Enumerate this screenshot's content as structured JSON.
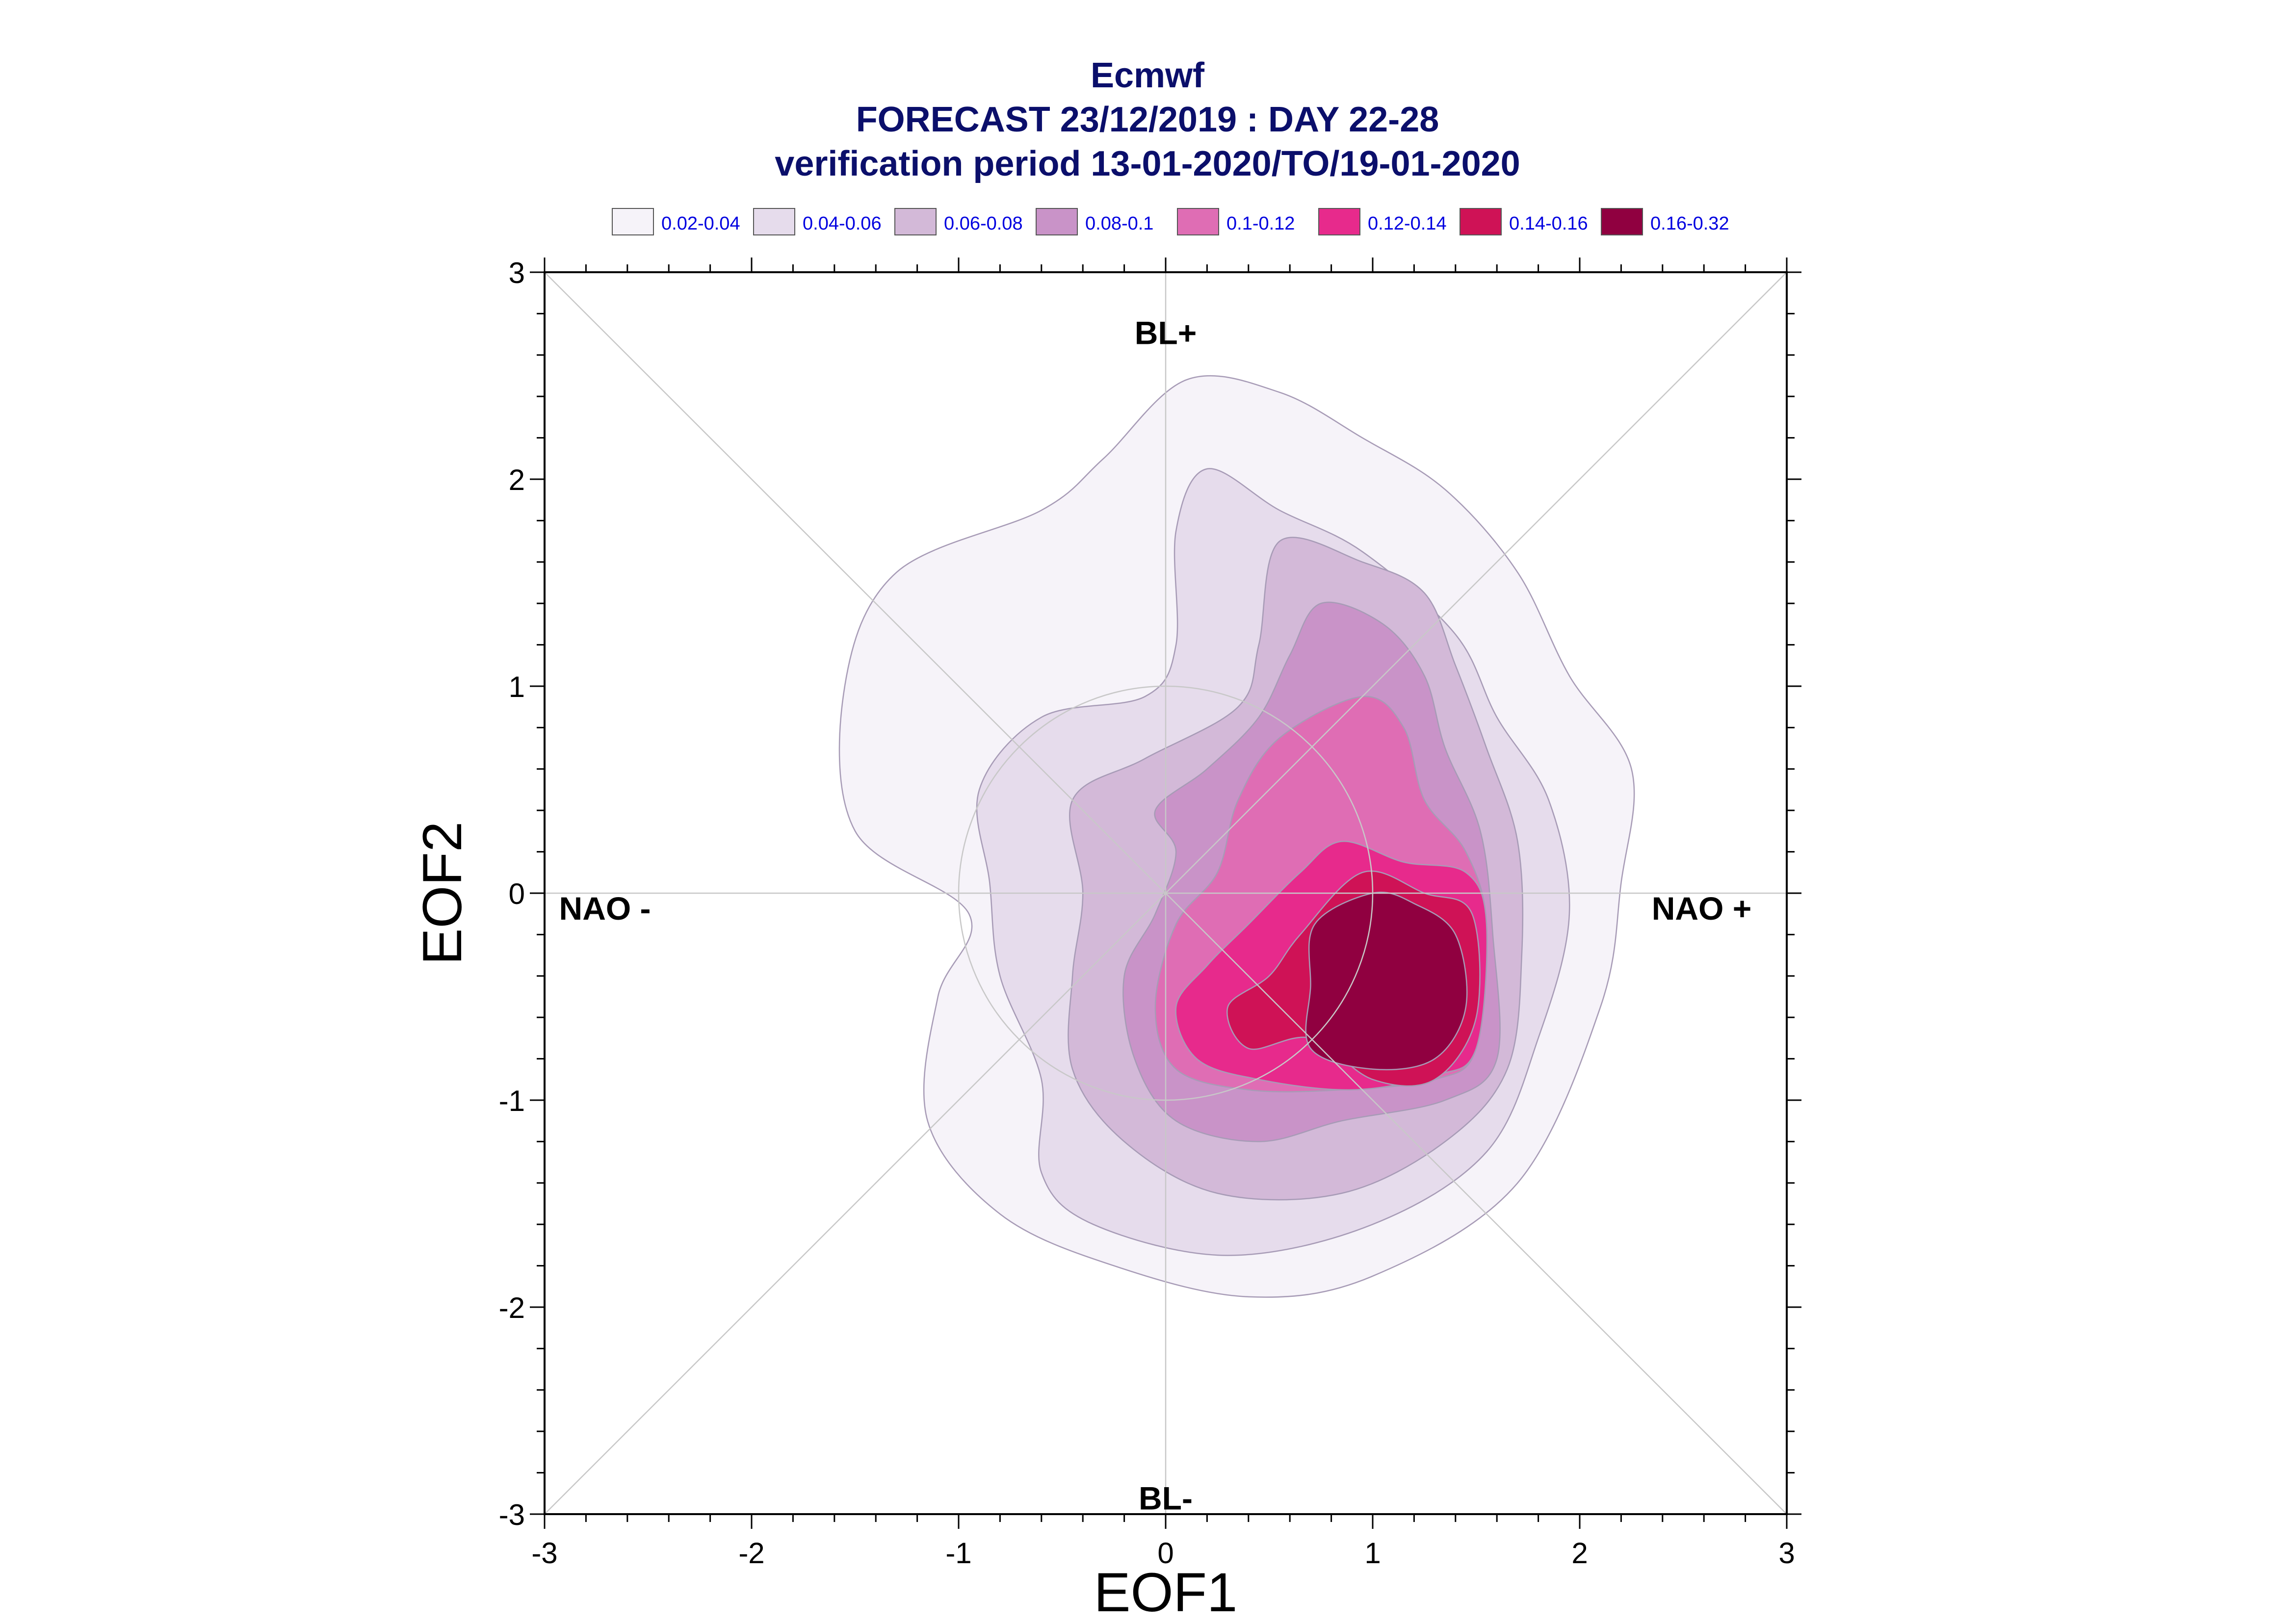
{
  "chart_data": {
    "type": "contour",
    "title_lines": [
      "Ecmwf",
      "FORECAST 23/12/2019 : DAY 22-28",
      "verification period 13-01-2020/TO/19-01-2020"
    ],
    "xlabel": "EOF1",
    "ylabel": "EOF2",
    "xlim": [
      -3,
      3
    ],
    "ylim": [
      -3,
      3
    ],
    "xticks": [
      "-3",
      "-2",
      "-1",
      "0",
      "1",
      "2",
      "3"
    ],
    "yticks": [
      "3",
      "2",
      "1",
      "0",
      "-1",
      "-2",
      "-3"
    ],
    "grid": false,
    "legend_position": "top",
    "legend": [
      {
        "label": "0.02-0.04",
        "color": "#f6f3f9"
      },
      {
        "label": "0.04-0.06",
        "color": "#e6dcec"
      },
      {
        "label": "0.06-0.08",
        "color": "#d3b9d8"
      },
      {
        "label": "0.08-0.1",
        "color": "#c993c8"
      },
      {
        "label": "0.1-0.12",
        "color": "#df6db4"
      },
      {
        "label": "0.12-0.14",
        "color": "#e72a8c"
      },
      {
        "label": "0.14-0.16",
        "color": "#cf1256"
      },
      {
        "label": "0.16-0.32",
        "color": "#900040"
      }
    ],
    "regime_labels": {
      "top": "BL+",
      "bottom": "BL-",
      "left": "NAO -",
      "right": "NAO +"
    },
    "reference_circle": {
      "center": [
        0,
        0
      ],
      "radius": 1
    },
    "levels": [
      [
        [
          0.1,
          2.48
        ],
        [
          0.55,
          2.42
        ],
        [
          0.95,
          2.2
        ],
        [
          1.35,
          1.95
        ],
        [
          1.7,
          1.55
        ],
        [
          1.95,
          1.05
        ],
        [
          2.25,
          0.6
        ],
        [
          2.2,
          0.05
        ],
        [
          2.1,
          -0.55
        ],
        [
          1.7,
          -1.4
        ],
        [
          1.0,
          -1.85
        ],
        [
          0.4,
          -1.95
        ],
        [
          -0.25,
          -1.8
        ],
        [
          -0.8,
          -1.55
        ],
        [
          -1.15,
          -1.1
        ],
        [
          -1.1,
          -0.5
        ],
        [
          -0.95,
          -0.1
        ],
        [
          -1.5,
          0.3
        ],
        [
          -1.55,
          1.0
        ],
        [
          -1.3,
          1.55
        ],
        [
          -0.6,
          1.85
        ],
        [
          -0.3,
          2.1
        ]
      ],
      [
        [
          0.2,
          2.05
        ],
        [
          0.55,
          1.85
        ],
        [
          0.95,
          1.65
        ],
        [
          1.4,
          1.25
        ],
        [
          1.6,
          0.85
        ],
        [
          1.85,
          0.45
        ],
        [
          1.95,
          -0.1
        ],
        [
          1.8,
          -0.7
        ],
        [
          1.55,
          -1.25
        ],
        [
          1.0,
          -1.6
        ],
        [
          0.3,
          -1.75
        ],
        [
          -0.35,
          -1.6
        ],
        [
          -0.6,
          -1.35
        ],
        [
          -0.6,
          -0.9
        ],
        [
          -0.8,
          -0.4
        ],
        [
          -0.85,
          0.05
        ],
        [
          -0.9,
          0.5
        ],
        [
          -0.6,
          0.85
        ],
        [
          -0.1,
          0.95
        ],
        [
          0.05,
          1.2
        ],
        [
          0.05,
          1.75
        ]
      ],
      [
        [
          0.55,
          1.7
        ],
        [
          0.95,
          1.6
        ],
        [
          1.25,
          1.45
        ],
        [
          1.4,
          1.1
        ],
        [
          1.55,
          0.7
        ],
        [
          1.7,
          0.25
        ],
        [
          1.72,
          -0.3
        ],
        [
          1.65,
          -0.85
        ],
        [
          1.35,
          -1.2
        ],
        [
          0.85,
          -1.45
        ],
        [
          0.25,
          -1.45
        ],
        [
          -0.2,
          -1.2
        ],
        [
          -0.45,
          -0.85
        ],
        [
          -0.45,
          -0.4
        ],
        [
          -0.4,
          0.0
        ],
        [
          -0.45,
          0.45
        ],
        [
          -0.1,
          0.65
        ],
        [
          0.35,
          0.9
        ],
        [
          0.45,
          1.2
        ]
      ],
      [
        [
          0.75,
          1.4
        ],
        [
          1.05,
          1.3
        ],
        [
          1.25,
          1.05
        ],
        [
          1.35,
          0.7
        ],
        [
          1.52,
          0.3
        ],
        [
          1.58,
          -0.2
        ],
        [
          1.6,
          -0.8
        ],
        [
          1.35,
          -1.0
        ],
        [
          0.85,
          -1.1
        ],
        [
          0.45,
          -1.2
        ],
        [
          0.05,
          -1.1
        ],
        [
          -0.15,
          -0.8
        ],
        [
          -0.2,
          -0.4
        ],
        [
          -0.05,
          -0.1
        ],
        [
          0.05,
          0.2
        ],
        [
          -0.05,
          0.4
        ],
        [
          0.2,
          0.6
        ],
        [
          0.45,
          0.85
        ],
        [
          0.6,
          1.15
        ]
      ],
      [
        [
          0.95,
          0.95
        ],
        [
          1.15,
          0.8
        ],
        [
          1.25,
          0.45
        ],
        [
          1.45,
          0.2
        ],
        [
          1.55,
          -0.15
        ],
        [
          1.5,
          -0.75
        ],
        [
          1.3,
          -0.9
        ],
        [
          0.85,
          -0.95
        ],
        [
          0.4,
          -0.95
        ],
        [
          0.05,
          -0.85
        ],
        [
          -0.05,
          -0.55
        ],
        [
          0.05,
          -0.15
        ],
        [
          0.25,
          0.1
        ],
        [
          0.35,
          0.45
        ],
        [
          0.55,
          0.75
        ]
      ],
      [
        [
          0.85,
          0.25
        ],
        [
          1.15,
          0.15
        ],
        [
          1.45,
          0.1
        ],
        [
          1.55,
          -0.15
        ],
        [
          1.5,
          -0.75
        ],
        [
          1.3,
          -0.88
        ],
        [
          0.9,
          -0.95
        ],
        [
          0.45,
          -0.9
        ],
        [
          0.15,
          -0.8
        ],
        [
          0.05,
          -0.55
        ],
        [
          0.2,
          -0.35
        ],
        [
          0.4,
          -0.15
        ],
        [
          0.65,
          0.1
        ]
      ],
      [
        [
          0.95,
          0.1
        ],
        [
          1.25,
          0.0
        ],
        [
          1.48,
          -0.1
        ],
        [
          1.5,
          -0.6
        ],
        [
          1.3,
          -0.9
        ],
        [
          1.0,
          -0.9
        ],
        [
          0.7,
          -0.7
        ],
        [
          0.4,
          -0.75
        ],
        [
          0.3,
          -0.55
        ],
        [
          0.5,
          -0.4
        ],
        [
          0.65,
          -0.2
        ]
      ],
      [
        [
          1.0,
          0.0
        ],
        [
          1.2,
          -0.05
        ],
        [
          1.4,
          -0.2
        ],
        [
          1.45,
          -0.55
        ],
        [
          1.3,
          -0.8
        ],
        [
          1.0,
          -0.85
        ],
        [
          0.7,
          -0.75
        ],
        [
          0.7,
          -0.45
        ],
        [
          0.72,
          -0.15
        ]
      ]
    ]
  }
}
